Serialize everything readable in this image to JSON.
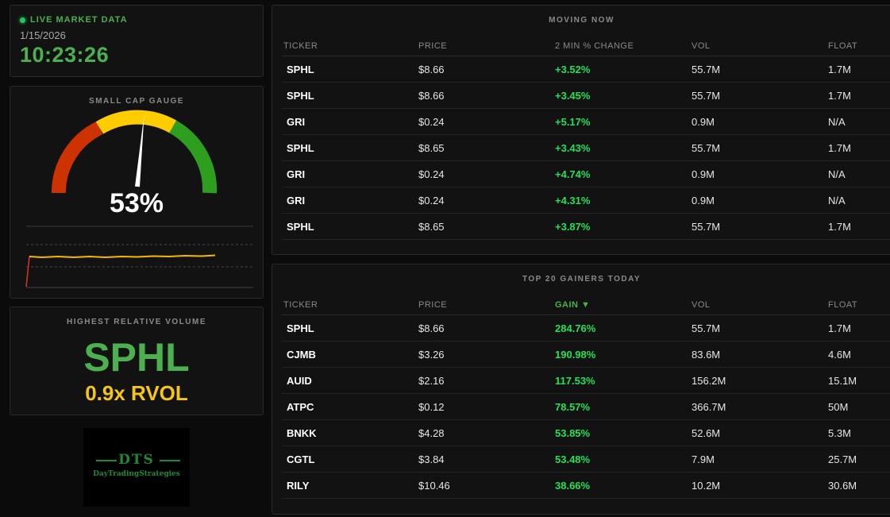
{
  "live": {
    "label": "LIVE MARKET DATA",
    "date": "1/15/2026",
    "time": "10:23:26"
  },
  "gauge": {
    "title": "SMALL CAP GAUGE",
    "value_text": "53%",
    "value": 53
  },
  "rvol": {
    "title": "HIGHEST RELATIVE VOLUME",
    "ticker": "SPHL",
    "value": "0.9x RVOL"
  },
  "logo": {
    "name": "DTS",
    "subtitle": "DayTradingStrategies"
  },
  "moving_now": {
    "title": "MOVING NOW",
    "columns": [
      "TICKER",
      "PRICE",
      "2 MIN % CHANGE",
      "VOL",
      "FLOAT"
    ],
    "rows": [
      [
        "SPHL",
        "$8.66",
        "+3.52%",
        "55.7M",
        "1.7M"
      ],
      [
        "SPHL",
        "$8.66",
        "+3.45%",
        "55.7M",
        "1.7M"
      ],
      [
        "GRI",
        "$0.24",
        "+5.17%",
        "0.9M",
        "N/A"
      ],
      [
        "SPHL",
        "$8.65",
        "+3.43%",
        "55.7M",
        "1.7M"
      ],
      [
        "GRI",
        "$0.24",
        "+4.74%",
        "0.9M",
        "N/A"
      ],
      [
        "GRI",
        "$0.24",
        "+4.31%",
        "0.9M",
        "N/A"
      ],
      [
        "SPHL",
        "$8.65",
        "+3.87%",
        "55.7M",
        "1.7M"
      ]
    ]
  },
  "gainers": {
    "title": "TOP 20 GAINERS TODAY",
    "columns": [
      "TICKER",
      "PRICE",
      "GAIN ▼",
      "VOL",
      "FLOAT"
    ],
    "rows": [
      [
        "SPHL",
        "$8.66",
        "284.76%",
        "55.7M",
        "1.7M"
      ],
      [
        "CJMB",
        "$3.26",
        "190.98%",
        "83.6M",
        "4.6M"
      ],
      [
        "AUID",
        "$2.16",
        "117.53%",
        "156.2M",
        "15.1M"
      ],
      [
        "ATPC",
        "$0.12",
        "78.57%",
        "366.7M",
        "50M"
      ],
      [
        "BNKK",
        "$4.28",
        "53.85%",
        "52.6M",
        "5.3M"
      ],
      [
        "CGTL",
        "$3.84",
        "53.48%",
        "7.9M",
        "25.7M"
      ],
      [
        "RILY",
        "$10.46",
        "38.66%",
        "10.2M",
        "30.6M"
      ]
    ]
  },
  "colors": {
    "accent_green": "#4caf50",
    "positive": "#22e05a",
    "rvol_yellow": "#f5c518",
    "gauge_red": "#cc3300",
    "gauge_yellow": "#ffcc00",
    "gauge_green": "#2e9e1f"
  }
}
